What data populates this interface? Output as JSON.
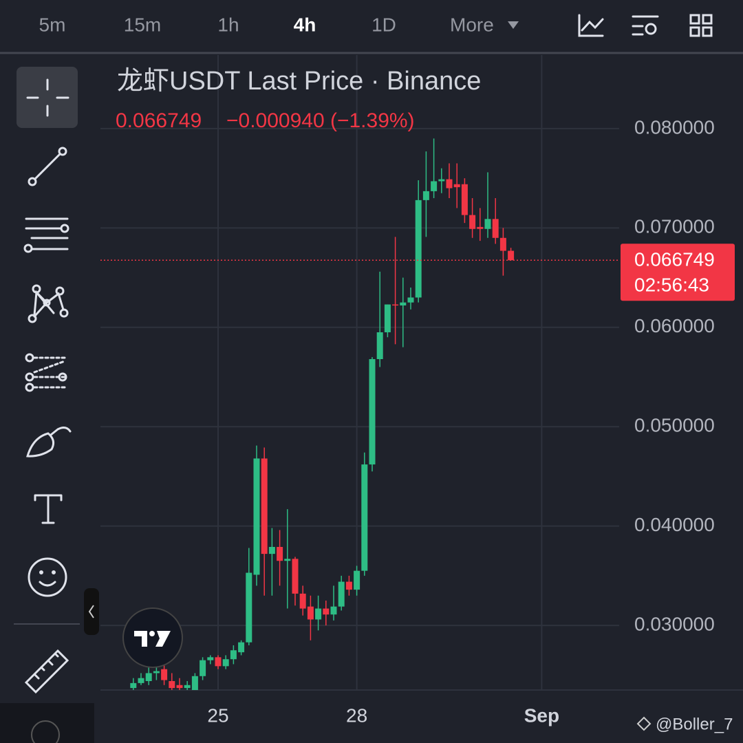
{
  "ui": {
    "tabs": [
      "5m",
      "15m",
      "1h",
      "4h",
      "1D"
    ],
    "more": "More",
    "watermark": "@Boller_7"
  },
  "chart_data": {
    "type": "candlestick",
    "title": "龙虾USDT Last Price · Binance",
    "last_price": "0.066749",
    "change": "−0.000940 (−1.39%)",
    "price_tag": {
      "value_label": "0.066749",
      "countdown": "02:56:43"
    },
    "up_color": "#2ebd85",
    "down_color": "#f23645",
    "grid": true,
    "categories": [
      null,
      null,
      null,
      null,
      null,
      null,
      null,
      null,
      null,
      null,
      null,
      "25",
      null,
      null,
      null,
      null,
      null,
      null,
      null,
      null,
      null,
      null,
      null,
      null,
      null,
      null,
      null,
      null,
      null,
      "28",
      null,
      null,
      null,
      null,
      null,
      null,
      null,
      null,
      null,
      null,
      null,
      null,
      null,
      null,
      null,
      null,
      null,
      null,
      null,
      null,
      null,
      null,
      null,
      "Sep"
    ],
    "open": [
      0.0237,
      0.0242,
      0.0244,
      0.0252,
      0.0256,
      0.0244,
      0.024,
      0.0237,
      0.0235,
      0.0249,
      0.0265,
      0.0268,
      0.0259,
      0.0266,
      0.0273,
      0.0283,
      0.0351,
      0.0468,
      0.0372,
      0.0379,
      0.0365,
      0.0367,
      0.0332,
      0.0319,
      0.0306,
      0.0317,
      0.0311,
      0.0319,
      0.0344,
      0.0336,
      0.0355,
      0.0462,
      0.0568,
      0.0595,
      0.0623,
      0.0622,
      0.0625,
      0.063,
      0.0728,
      0.0737,
      0.0747,
      0.0749,
      0.0744,
      0.0744,
      0.0713,
      0.0701,
      0.0699,
      0.0709,
      0.069,
      0.0677,
      null,
      null,
      null,
      null
    ],
    "high": [
      0.0247,
      0.0252,
      0.0261,
      0.0261,
      0.0261,
      0.0252,
      0.0247,
      0.0244,
      0.0252,
      0.0268,
      0.027,
      0.027,
      0.027,
      0.028,
      0.0285,
      0.0378,
      0.0481,
      0.0479,
      0.0398,
      0.0396,
      0.0417,
      0.0369,
      0.034,
      0.033,
      0.033,
      0.0325,
      0.034,
      0.035,
      0.035,
      0.036,
      0.0474,
      0.057,
      0.0656,
      0.0623,
      0.0691,
      0.065,
      0.064,
      0.0748,
      0.0777,
      0.079,
      0.076,
      0.0765,
      0.0765,
      0.075,
      0.073,
      0.072,
      0.0756,
      0.073,
      0.07,
      0.068,
      null,
      null,
      null,
      null
    ],
    "low": [
      0.0235,
      0.024,
      0.024,
      0.0245,
      0.024,
      0.0235,
      0.0235,
      0.0235,
      0.0235,
      0.0245,
      0.0261,
      0.0256,
      0.0256,
      0.0261,
      0.027,
      0.028,
      0.034,
      0.033,
      0.033,
      0.034,
      0.0317,
      0.032,
      0.031,
      0.0285,
      0.0295,
      0.03,
      0.0305,
      0.0315,
      0.033,
      0.033,
      0.035,
      0.0455,
      0.056,
      0.059,
      0.0583,
      0.058,
      0.0618,
      0.0625,
      0.0691,
      0.073,
      0.0735,
      0.073,
      0.072,
      0.0705,
      0.069,
      0.0687,
      0.069,
      0.0684,
      0.0652,
      0.0668,
      null,
      null,
      null,
      null
    ],
    "close": [
      0.0242,
      0.0247,
      0.0252,
      0.0254,
      0.0245,
      0.0237,
      0.0237,
      0.024,
      0.0249,
      0.0265,
      0.0268,
      0.0259,
      0.0266,
      0.0275,
      0.0283,
      0.0353,
      0.0468,
      0.0372,
      0.0379,
      0.0365,
      0.0367,
      0.0332,
      0.0317,
      0.0306,
      0.0317,
      0.0311,
      0.0319,
      0.0344,
      0.0336,
      0.0355,
      0.0462,
      0.0568,
      0.0595,
      0.0623,
      0.0622,
      0.0625,
      0.063,
      0.0728,
      0.0737,
      0.0747,
      0.0749,
      0.074,
      0.0741,
      0.0713,
      0.0699,
      0.0699,
      0.0709,
      0.069,
      0.0677,
      0.066749,
      null,
      null,
      null,
      null
    ],
    "ylim": [
      0.0235,
      0.0874
    ],
    "yticks": [
      {
        "value": 0.03,
        "label": "0.030000"
      },
      {
        "value": 0.04,
        "label": "0.040000"
      },
      {
        "value": 0.05,
        "label": "0.050000"
      },
      {
        "value": 0.06,
        "label": "0.060000"
      },
      {
        "value": 0.07,
        "label": "0.070000"
      },
      {
        "value": 0.08,
        "label": "0.080000"
      }
    ]
  }
}
